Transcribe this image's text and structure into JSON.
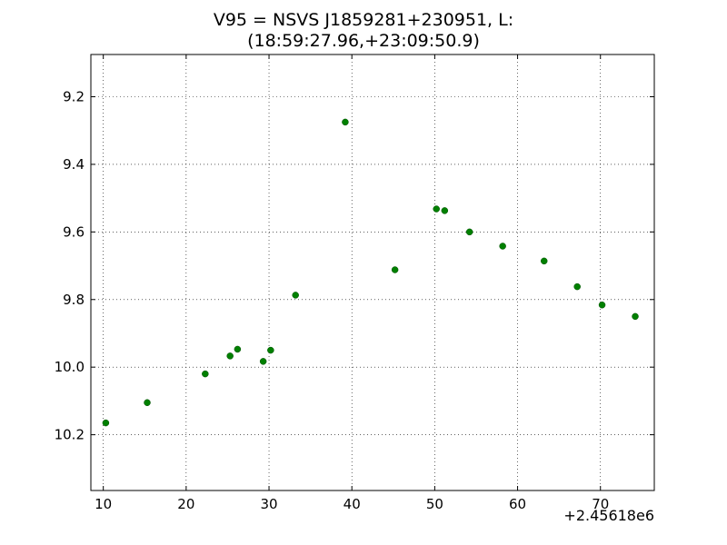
{
  "chart_data": {
    "type": "scatter",
    "title_line1": "V95 = NSVS J1859281+230951, L:",
    "title_line2": "(18:59:27.96,+23:09:50.9)",
    "xlabel": "",
    "ylabel": "",
    "x_offset_label": "+2.45618e6",
    "xlim": [
      8.5,
      76.5
    ],
    "ylim": [
      10.365,
      9.075
    ],
    "y_inverted": true,
    "grid": true,
    "x_ticks": [
      10,
      20,
      30,
      40,
      50,
      60,
      70
    ],
    "y_ticks": [
      9.2,
      9.4,
      9.6,
      9.8,
      10.0,
      10.2
    ],
    "x_tick_labels": [
      "10",
      "20",
      "30",
      "40",
      "50",
      "60",
      "70"
    ],
    "y_tick_labels": [
      "9.2",
      "9.4",
      "9.6",
      "9.8",
      "10.0",
      "10.2"
    ],
    "marker_color": "#008000",
    "series": [
      {
        "points": [
          [
            10.3,
            10.165
          ],
          [
            15.3,
            10.105
          ],
          [
            22.3,
            10.02
          ],
          [
            25.3,
            9.967
          ],
          [
            26.2,
            9.947
          ],
          [
            29.3,
            9.983
          ],
          [
            30.2,
            9.95
          ],
          [
            33.2,
            9.787
          ],
          [
            39.2,
            9.275
          ],
          [
            45.2,
            9.712
          ],
          [
            50.2,
            9.532
          ],
          [
            51.2,
            9.537
          ],
          [
            54.2,
            9.6
          ],
          [
            58.2,
            9.642
          ],
          [
            63.2,
            9.686
          ],
          [
            67.2,
            9.762
          ],
          [
            70.2,
            9.816
          ],
          [
            74.2,
            9.85
          ]
        ]
      }
    ]
  }
}
